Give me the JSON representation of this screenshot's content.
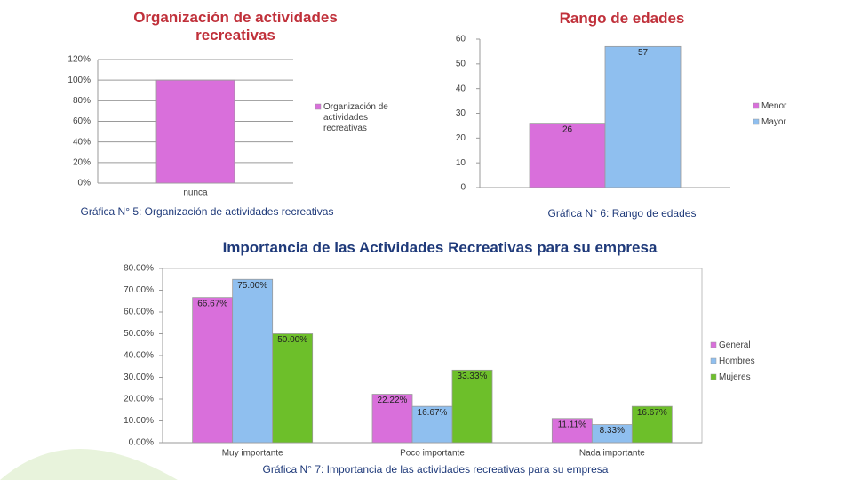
{
  "chart_data": [
    {
      "type": "bar",
      "title": "Organización de actividades recreativas",
      "caption": "Gráfica N° 5: Organización de actividades recreativas",
      "categories": [
        "nunca"
      ],
      "series": [
        {
          "name": "Organización de actividades recreativas",
          "color": "#d96fdb",
          "values": [
            100
          ]
        }
      ],
      "ylim": [
        0,
        120
      ],
      "yticks": [
        {
          "value": 0,
          "label": "0%"
        },
        {
          "value": 20,
          "label": "20%"
        },
        {
          "value": 40,
          "label": "40%"
        },
        {
          "value": 60,
          "label": "60%"
        },
        {
          "value": 80,
          "label": "80%"
        },
        {
          "value": 100,
          "label": "100%"
        },
        {
          "value": 120,
          "label": "120%"
        }
      ],
      "grid": true,
      "legend": "right"
    },
    {
      "type": "bar",
      "title": "Rango de edades",
      "caption": "Gráfica N° 6: Rango de edades",
      "categories": [
        null
      ],
      "series": [
        {
          "name": "Menor",
          "color": "#d96fdb",
          "values": [
            26
          ]
        },
        {
          "name": "Mayor",
          "color": "#8fbfef",
          "values": [
            57
          ]
        }
      ],
      "ylim": [
        0,
        60
      ],
      "yticks": [
        0,
        10,
        20,
        30,
        40,
        50,
        60
      ],
      "grid": false,
      "legend": "right"
    },
    {
      "type": "bar",
      "title": "Importancia de las Actividades Recreativas para su empresa",
      "caption": "Gráfica N° 7: Importancia de las actividades recreativas para su empresa",
      "categories": [
        "Muy importante",
        "Poco importante",
        "Nada importante"
      ],
      "series": [
        {
          "name": "General",
          "color": "#d96fdb",
          "values": [
            66.67,
            22.22,
            11.11
          ],
          "value_labels": [
            "66.67%",
            "22.22%",
            "11.11%"
          ]
        },
        {
          "name": "Hombres",
          "color": "#8fbfef",
          "values": [
            75,
            16.67,
            8.33
          ],
          "value_labels": [
            "75.00%",
            "16.67%",
            "8.33%"
          ]
        },
        {
          "name": "Mujeres",
          "color": "#6dbf2a",
          "values": [
            50,
            33.33,
            16.67
          ],
          "value_labels": [
            "50.00%",
            "33.33%",
            "16.67%"
          ]
        }
      ],
      "ylim": [
        0,
        80
      ],
      "yticks": [
        {
          "value": 0,
          "label": "0.00%"
        },
        {
          "value": 10,
          "label": "10.00%"
        },
        {
          "value": 20,
          "label": "20.00%"
        },
        {
          "value": 30,
          "label": "30.00%"
        },
        {
          "value": 40,
          "label": "40.00%"
        },
        {
          "value": 50,
          "label": "50.00%"
        },
        {
          "value": 60,
          "label": "60.00%"
        },
        {
          "value": 70,
          "label": "70.00%"
        },
        {
          "value": 80,
          "label": "80.00%"
        }
      ],
      "grid": false,
      "legend": "right"
    }
  ]
}
